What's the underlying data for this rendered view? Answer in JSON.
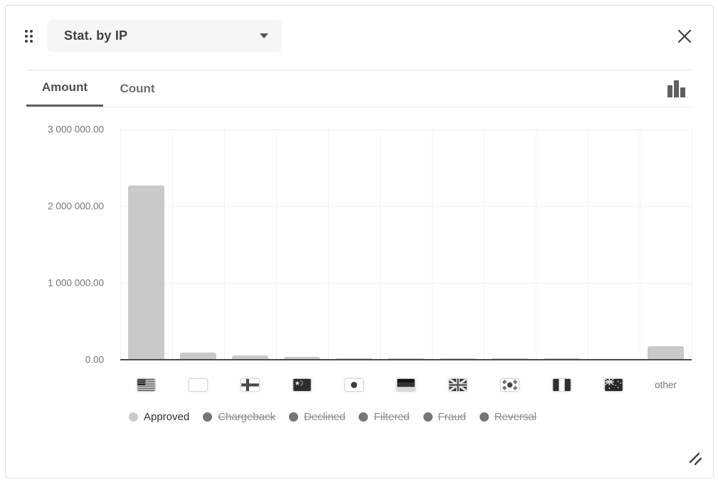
{
  "header": {
    "title": "Stat. by IP"
  },
  "tabs": {
    "items": [
      {
        "label": "Amount",
        "active": true
      },
      {
        "label": "Count",
        "active": false
      }
    ]
  },
  "chart_data": {
    "type": "bar",
    "title": "Stat. by IP",
    "active_tab": "Amount",
    "categories": [
      "United States",
      "Unknown",
      "Finland",
      "China",
      "Japan",
      "Germany",
      "United Kingdom",
      "South Korea",
      "Nigeria",
      "Australia",
      "other"
    ],
    "category_flags": [
      "us",
      "unknown",
      "fi",
      "cn",
      "jp",
      "de",
      "gb",
      "kr",
      "ng",
      "au",
      null
    ],
    "category_icon_names": [
      "us-flag-icon",
      "unknown-flag-icon",
      "finland-flag-icon",
      "china-flag-icon",
      "japan-flag-icon",
      "germany-flag-icon",
      "uk-flag-icon",
      "south-korea-flag-icon",
      "nigeria-flag-icon",
      "australia-flag-icon",
      "other-label"
    ],
    "other_label": "other",
    "series": [
      {
        "name": "Approved",
        "values": [
          2270000,
          95000,
          55000,
          38000,
          20000,
          20000,
          20000,
          20000,
          18000,
          8000,
          175000
        ]
      }
    ],
    "legend": [
      {
        "label": "Approved",
        "active": true
      },
      {
        "label": "Chargeback",
        "active": false
      },
      {
        "label": "Declined",
        "active": false
      },
      {
        "label": "Filtered",
        "active": false
      },
      {
        "label": "Fraud",
        "active": false
      },
      {
        "label": "Reversal",
        "active": false
      }
    ],
    "y_ticks": [
      "3 000 000.00",
      "2 000 000.00",
      "1 000 000.00",
      "0.00"
    ],
    "ylim": [
      0,
      3000000
    ],
    "grid": true,
    "legend_position": "bottom"
  },
  "colors": {
    "bar": "#c9c9c9",
    "legend_active_dot": "#c9c9c9",
    "legend_inactive_dot": "#757575",
    "baseline": "#4a4a4a",
    "gridline": "#f2f2f2",
    "icon_gray": "#424242"
  }
}
